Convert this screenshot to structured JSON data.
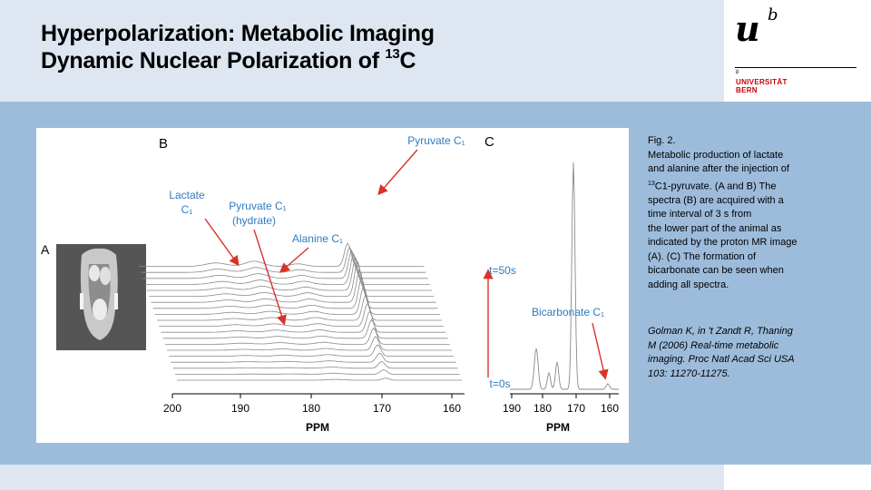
{
  "slide": {
    "title_line1": "Hyperpolarization: Metabolic Imaging",
    "title_line2": "Dynamic Nuclear Polarization of ",
    "title_sup": "13",
    "title_tail": "C"
  },
  "logo": {
    "u": "u",
    "b": "b",
    "small_b": "b",
    "university": "UNIVERSITÄT",
    "bern": "BERN"
  },
  "caption": {
    "fig_label": "Fig. 2.",
    "line1": "Metabolic production of lactate",
    "line2": "and alanine after the injection of",
    "line3_sup": "13",
    "line3": "C1-pyruvate. (A and B) The",
    "line4": "spectra (B) are acquired with a",
    "line5": "time interval of 3 s from",
    "line6": "the lower part of the animal as",
    "line7": "indicated by the proton MR image",
    "line8": "(A). (C) The formation of",
    "line9": "bicarbonate can be seen when",
    "line10": "adding all spectra."
  },
  "citation": {
    "line1": "Golman K, in 't Zandt R, Thaning",
    "line2": "M (2006) Real-time metabolic",
    "line3": "imaging. Proc Natl Acad Sci USA",
    "line4": "103: 11270-11275."
  },
  "figure": {
    "panel_a": "A",
    "panel_b": "B",
    "panel_c": "C",
    "lactate_1": "Lactate",
    "lactate_2": "C₁",
    "pyruvate_hydrate_1": "Pyruvate C₁",
    "pyruvate_hydrate_2": "(hydrate)",
    "alanine": "Alanine C₁",
    "pyruvate_top": "Pyruvate C₁",
    "bicarbonate": "Bicarbonate C₁",
    "t_top": "t=50s",
    "t_bottom": "t=0s",
    "xlabel_b": "PPM",
    "xlabel_c": "PPM",
    "ticks_b": [
      "200",
      "190",
      "180",
      "170",
      "160"
    ],
    "ticks_c": [
      "190",
      "180",
      "170",
      "160"
    ]
  },
  "colors": {
    "header_bg": "#dde6f1",
    "panel_bg": "#9dbcdc",
    "annotation_blue": "#2f7bbf",
    "arrow_red": "#d9322b",
    "logo_red": "#cc0000"
  }
}
